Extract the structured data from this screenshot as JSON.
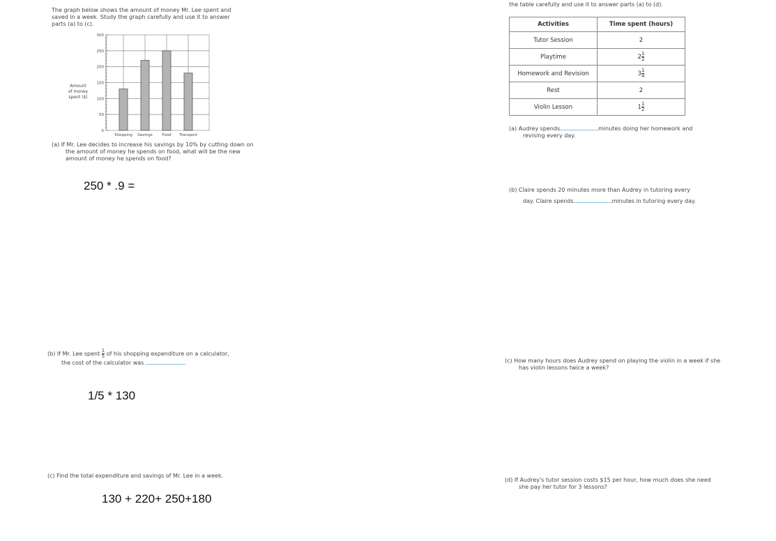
{
  "left": {
    "intro": "The graph below shows the amount of money Mr. Lee spent and saved in a week. Study the graph carefully and use it to answer parts (a) to (c).",
    "qa": "(a)  If Mr. Lee decides to increase his savings by 10% by cutting down on the amount of money he spends on food, what will be the new amount of money he spends on food?",
    "answer_a": "250 * .9 =",
    "qb_1": "(b)  If Mr. Lee spent",
    "qb_frac_num": "1",
    "qb_frac_den": "5",
    "qb_2": "of his shopping expenditure on a calculator,",
    "qb_3": "the cost of the calculator was",
    "answer_b": "1/5 * 130",
    "qc": "(c)  Find the total expenditure and savings of Mr. Lee in a week.",
    "answer_c": "130 + 220+ 250+180"
  },
  "chart_data": {
    "type": "bar",
    "categories": [
      "Shopping",
      "Savings",
      "Food",
      "Transport"
    ],
    "values": [
      130,
      220,
      250,
      180
    ],
    "ylabel": [
      "Amount",
      "of money",
      "spent ($)"
    ],
    "ylim": [
      0,
      300
    ],
    "yticks": [
      0,
      50,
      100,
      150,
      200,
      250,
      300
    ],
    "grid": true,
    "bar_color": "#b3b3b3"
  },
  "right": {
    "intro": "the table carefully and use it to answer parts (a) to (d).",
    "table": {
      "headers": [
        "Activities",
        "Time spent (hours)"
      ],
      "rows": [
        {
          "activity": "Tutor Session",
          "whole": "2",
          "num": "",
          "den": ""
        },
        {
          "activity": "Playtime",
          "whole": "2",
          "num": "1",
          "den": "2"
        },
        {
          "activity": "Homework and Revision",
          "whole": "3",
          "num": "1",
          "den": "4"
        },
        {
          "activity": "Rest",
          "whole": "2",
          "num": "",
          "den": ""
        },
        {
          "activity": "Violin Lesson",
          "whole": "1",
          "num": "1",
          "den": "2"
        }
      ]
    },
    "qa_1": "(a)  Audrey spends",
    "qa_2": "minutes doing her homework and",
    "qa_3": "revising every day.",
    "qb_1": "(b)  Claire spends 20 minutes more than Audrey in tutoring every",
    "qb_2": "day. Claire spends",
    "qb_3": "minutes in tutoring every day.",
    "qc": "(c)  How many hours does Audrey spend on playing the violin in a week if she has violin lessons twice a week?",
    "qd": "(d)  If Audrey's tutor session costs $15 per hour, how much does she need she pay her tutor for 3 lessons?"
  }
}
